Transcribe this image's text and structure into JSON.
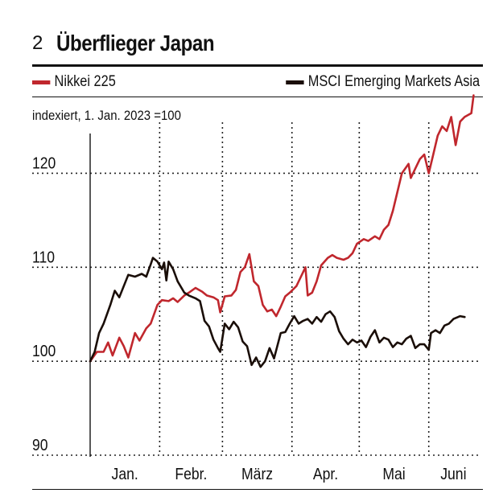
{
  "figure": {
    "number": "2",
    "title": "Überflieger Japan"
  },
  "colors": {
    "nikkei": "#c0272d",
    "msci": "#1a0e08",
    "grid": "#222222"
  },
  "chart_data": {
    "type": "line",
    "subtitle": "indexiert, 1. Jan. 2023 =100",
    "ylim": [
      90,
      128
    ],
    "yticks": [
      90,
      100,
      110,
      120
    ],
    "ytick_labels": [
      "90",
      "100",
      "110",
      "120"
    ],
    "grid": "dotted",
    "legend_position": "top",
    "x_tick_labels": [
      "Jan.",
      "Febr.",
      "März",
      "Apr.",
      "Mai",
      "Juni"
    ],
    "x_month_bounds": [
      "2023-01-01",
      "2023-02-01",
      "2023-03-01",
      "2023-04-01",
      "2023-05-01",
      "2023-06-01",
      "2023-06-23"
    ],
    "series": [
      {
        "name": "Nikkei 225",
        "points": [
          [
            "2023-01-01",
            100.0
          ],
          [
            "2023-01-04",
            101.0
          ],
          [
            "2023-01-07",
            101.0
          ],
          [
            "2023-01-09",
            102.0
          ],
          [
            "2023-01-11",
            100.6
          ],
          [
            "2023-01-14",
            102.5
          ],
          [
            "2023-01-16",
            101.6
          ],
          [
            "2023-01-18",
            100.4
          ],
          [
            "2023-01-21",
            103.0
          ],
          [
            "2023-01-23",
            102.2
          ],
          [
            "2023-01-26",
            103.5
          ],
          [
            "2023-01-28",
            104.0
          ],
          [
            "2023-01-31",
            106.0
          ],
          [
            "2023-02-02",
            106.5
          ],
          [
            "2023-02-05",
            106.4
          ],
          [
            "2023-02-07",
            106.7
          ],
          [
            "2023-02-09",
            106.3
          ],
          [
            "2023-02-12",
            107.0
          ],
          [
            "2023-02-14",
            107.3
          ],
          [
            "2023-02-17",
            107.8
          ],
          [
            "2023-02-20",
            107.4
          ],
          [
            "2023-02-22",
            107.0
          ],
          [
            "2023-02-25",
            106.8
          ],
          [
            "2023-02-27",
            106.5
          ],
          [
            "2023-02-28",
            105.2
          ],
          [
            "2023-03-02",
            106.9
          ],
          [
            "2023-03-05",
            107.0
          ],
          [
            "2023-03-07",
            107.6
          ],
          [
            "2023-03-09",
            109.5
          ],
          [
            "2023-03-11",
            110.0
          ],
          [
            "2023-03-13",
            111.4
          ],
          [
            "2023-03-15",
            108.5
          ],
          [
            "2023-03-17",
            108.0
          ],
          [
            "2023-03-19",
            106.0
          ],
          [
            "2023-03-21",
            105.3
          ],
          [
            "2023-03-23",
            105.5
          ],
          [
            "2023-03-25",
            104.8
          ],
          [
            "2023-03-27",
            105.8
          ],
          [
            "2023-03-29",
            106.9
          ],
          [
            "2023-03-31",
            107.3
          ],
          [
            "2023-04-03",
            108.0
          ],
          [
            "2023-04-05",
            109.0
          ],
          [
            "2023-04-07",
            110.0
          ],
          [
            "2023-04-08",
            107.0
          ],
          [
            "2023-04-10",
            107.3
          ],
          [
            "2023-04-12",
            108.5
          ],
          [
            "2023-04-14",
            110.2
          ],
          [
            "2023-04-17",
            111.0
          ],
          [
            "2023-04-19",
            111.3
          ],
          [
            "2023-04-21",
            111.0
          ],
          [
            "2023-04-24",
            110.8
          ],
          [
            "2023-04-26",
            111.0
          ],
          [
            "2023-04-28",
            111.5
          ],
          [
            "2023-04-30",
            112.5
          ],
          [
            "2023-05-03",
            113.0
          ],
          [
            "2023-05-05",
            112.8
          ],
          [
            "2023-05-08",
            113.3
          ],
          [
            "2023-05-10",
            113.0
          ],
          [
            "2023-05-12",
            114.0
          ],
          [
            "2023-05-14",
            114.5
          ],
          [
            "2023-05-16",
            116.0
          ],
          [
            "2023-05-18",
            118.0
          ],
          [
            "2023-05-20",
            120.0
          ],
          [
            "2023-05-23",
            121.0
          ],
          [
            "2023-05-24",
            119.5
          ],
          [
            "2023-05-26",
            120.5
          ],
          [
            "2023-05-28",
            121.5
          ],
          [
            "2023-05-30",
            122.0
          ],
          [
            "2023-06-01",
            120.0
          ],
          [
            "2023-06-03",
            122.0
          ],
          [
            "2023-06-05",
            124.0
          ],
          [
            "2023-06-07",
            125.0
          ],
          [
            "2023-06-09",
            124.5
          ],
          [
            "2023-06-11",
            126.0
          ],
          [
            "2023-06-13",
            123.0
          ],
          [
            "2023-06-15",
            125.5
          ],
          [
            "2023-06-17",
            126.0
          ],
          [
            "2023-06-20",
            126.4
          ],
          [
            "2023-06-21",
            128.3
          ]
        ]
      },
      {
        "name": "MSCI Emerging Markets Asia",
        "points": [
          [
            "2023-01-01",
            100.0
          ],
          [
            "2023-01-03",
            101.0
          ],
          [
            "2023-01-05",
            103.0
          ],
          [
            "2023-01-07",
            104.0
          ],
          [
            "2023-01-10",
            106.0
          ],
          [
            "2023-01-12",
            107.5
          ],
          [
            "2023-01-14",
            106.8
          ],
          [
            "2023-01-16",
            108.0
          ],
          [
            "2023-01-18",
            109.2
          ],
          [
            "2023-01-21",
            109.0
          ],
          [
            "2023-01-24",
            109.3
          ],
          [
            "2023-01-26",
            109.0
          ],
          [
            "2023-01-28",
            110.3
          ],
          [
            "2023-01-29",
            111.0
          ],
          [
            "2023-01-31",
            110.6
          ],
          [
            "2023-02-02",
            109.8
          ],
          [
            "2023-02-03",
            110.5
          ],
          [
            "2023-02-04",
            108.6
          ],
          [
            "2023-02-05",
            110.6
          ],
          [
            "2023-02-07",
            109.8
          ],
          [
            "2023-02-09",
            108.5
          ],
          [
            "2023-02-12",
            107.3
          ],
          [
            "2023-02-14",
            107.0
          ],
          [
            "2023-02-17",
            106.7
          ],
          [
            "2023-02-19",
            106.4
          ],
          [
            "2023-02-21",
            104.3
          ],
          [
            "2023-02-23",
            103.7
          ],
          [
            "2023-02-25",
            102.3
          ],
          [
            "2023-02-27",
            101.4
          ],
          [
            "2023-02-28",
            101.0
          ],
          [
            "2023-03-02",
            104.0
          ],
          [
            "2023-03-04",
            103.4
          ],
          [
            "2023-03-06",
            104.2
          ],
          [
            "2023-03-08",
            103.6
          ],
          [
            "2023-03-10",
            102.1
          ],
          [
            "2023-03-12",
            101.6
          ],
          [
            "2023-03-14",
            99.6
          ],
          [
            "2023-03-16",
            100.4
          ],
          [
            "2023-03-18",
            99.4
          ],
          [
            "2023-03-20",
            100.0
          ],
          [
            "2023-03-22",
            101.4
          ],
          [
            "2023-03-24",
            100.3
          ],
          [
            "2023-03-27",
            103.0
          ],
          [
            "2023-03-29",
            103.1
          ],
          [
            "2023-03-31",
            104.0
          ],
          [
            "2023-04-02",
            104.8
          ],
          [
            "2023-04-04",
            104.0
          ],
          [
            "2023-04-06",
            104.3
          ],
          [
            "2023-04-08",
            104.5
          ],
          [
            "2023-04-10",
            104.0
          ],
          [
            "2023-04-12",
            104.7
          ],
          [
            "2023-04-14",
            104.2
          ],
          [
            "2023-04-16",
            105.0
          ],
          [
            "2023-04-18",
            105.3
          ],
          [
            "2023-04-20",
            104.7
          ],
          [
            "2023-04-22",
            103.2
          ],
          [
            "2023-04-24",
            102.4
          ],
          [
            "2023-04-26",
            101.8
          ],
          [
            "2023-04-28",
            102.3
          ],
          [
            "2023-04-30",
            102.0
          ],
          [
            "2023-05-02",
            102.2
          ],
          [
            "2023-05-04",
            101.5
          ],
          [
            "2023-05-06",
            102.6
          ],
          [
            "2023-05-08",
            103.3
          ],
          [
            "2023-05-10",
            102.0
          ],
          [
            "2023-05-12",
            102.5
          ],
          [
            "2023-05-14",
            102.3
          ],
          [
            "2023-05-16",
            101.5
          ],
          [
            "2023-05-18",
            102.0
          ],
          [
            "2023-05-20",
            101.8
          ],
          [
            "2023-05-22",
            102.4
          ],
          [
            "2023-05-24",
            102.7
          ],
          [
            "2023-05-26",
            101.4
          ],
          [
            "2023-05-28",
            101.8
          ],
          [
            "2023-05-30",
            101.8
          ],
          [
            "2023-06-01",
            101.2
          ],
          [
            "2023-06-02",
            103.0
          ],
          [
            "2023-06-04",
            103.3
          ],
          [
            "2023-06-06",
            103.0
          ],
          [
            "2023-06-08",
            103.8
          ],
          [
            "2023-06-10",
            104.0
          ],
          [
            "2023-06-12",
            104.5
          ],
          [
            "2023-06-15",
            104.8
          ],
          [
            "2023-06-17",
            104.7
          ]
        ]
      }
    ]
  }
}
